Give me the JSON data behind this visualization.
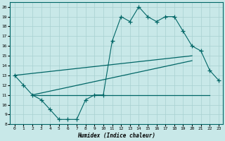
{
  "xlabel": "Humidex (Indice chaleur)",
  "bg_color": "#c8e8e8",
  "line_color": "#006666",
  "grid_color": "#a8d0d0",
  "xlim": [
    -0.5,
    23.5
  ],
  "ylim": [
    8,
    20.5
  ],
  "xtick_vals": [
    0,
    1,
    2,
    3,
    4,
    5,
    6,
    7,
    8,
    9,
    10,
    11,
    12,
    13,
    14,
    15,
    16,
    17,
    18,
    19,
    20,
    21,
    22,
    23
  ],
  "ytick_vals": [
    8,
    9,
    10,
    11,
    12,
    13,
    14,
    15,
    16,
    17,
    18,
    19,
    20
  ],
  "mline_x": [
    0,
    1,
    2,
    3,
    4,
    5,
    6,
    7,
    8,
    9,
    10,
    11,
    12,
    13,
    14,
    15,
    16,
    17,
    18,
    19,
    20,
    21,
    22,
    23
  ],
  "mline_y": [
    13,
    12,
    11,
    10.5,
    9.5,
    8.5,
    8.5,
    8.5,
    10.5,
    11,
    11,
    16.5,
    19,
    18.5,
    20,
    19,
    18.5,
    19,
    19,
    17.5,
    16,
    15.5,
    13.5,
    12.5
  ],
  "line1_x": [
    0,
    20
  ],
  "line1_y": [
    13.0,
    15.0
  ],
  "line2_x": [
    2,
    20
  ],
  "line2_y": [
    11.0,
    14.5
  ],
  "line3_x": [
    2,
    22
  ],
  "line3_y": [
    11.0,
    11.0
  ]
}
